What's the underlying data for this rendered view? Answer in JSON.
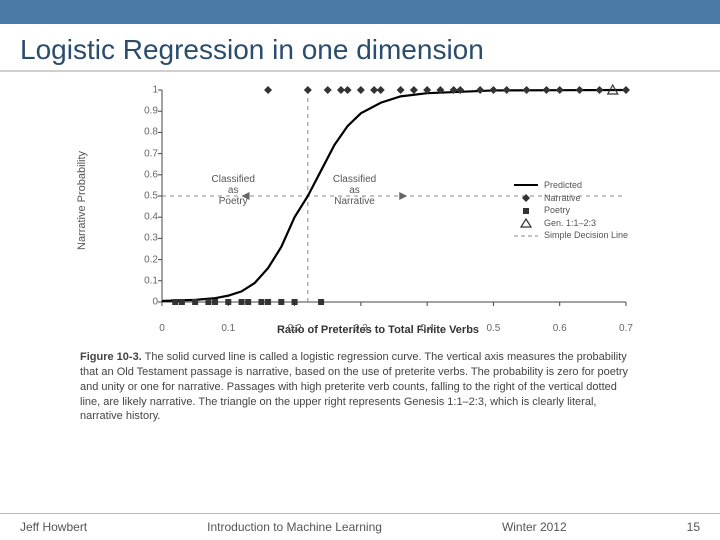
{
  "top_bar_color": "#4a7ba6",
  "title": "Logistic Regression in one dimension",
  "chart": {
    "type": "line",
    "ylabel": "Narrative Probability",
    "xlabel": "Ratio of Preterites to Total Finite Verbs",
    "xlim": [
      0,
      0.7
    ],
    "ylim": [
      0,
      1
    ],
    "xtick_step": 0.1,
    "ytick_step": 0.1,
    "xticks": [
      "0",
      "0.1",
      "0.2",
      "0.3",
      "0.4",
      "0.5",
      "0.6",
      "0.7"
    ],
    "yticks": [
      "0",
      "0.1",
      "0.2",
      "0.3",
      "0.4",
      "0.5",
      "0.6",
      "0.7",
      "0.8",
      "0.9",
      "1"
    ],
    "decision_x": 0.22,
    "decision_y": 0.5,
    "curve_color": "#000000",
    "curve_width": 2.2,
    "decision_line_color": "#888888",
    "axis_color": "#444444",
    "background_color": "#ffffff",
    "curve_points": [
      [
        0.0,
        0.005
      ],
      [
        0.05,
        0.01
      ],
      [
        0.08,
        0.018
      ],
      [
        0.1,
        0.03
      ],
      [
        0.12,
        0.05
      ],
      [
        0.14,
        0.09
      ],
      [
        0.16,
        0.16
      ],
      [
        0.18,
        0.26
      ],
      [
        0.2,
        0.4
      ],
      [
        0.22,
        0.5
      ],
      [
        0.24,
        0.62
      ],
      [
        0.26,
        0.74
      ],
      [
        0.28,
        0.83
      ],
      [
        0.3,
        0.89
      ],
      [
        0.33,
        0.94
      ],
      [
        0.36,
        0.97
      ],
      [
        0.4,
        0.985
      ],
      [
        0.5,
        0.998
      ],
      [
        0.6,
        0.999
      ],
      [
        0.7,
        1.0
      ]
    ],
    "narrative_points": [
      0.16,
      0.22,
      0.25,
      0.27,
      0.28,
      0.3,
      0.32,
      0.33,
      0.36,
      0.38,
      0.4,
      0.42,
      0.44,
      0.45,
      0.48,
      0.5,
      0.52,
      0.55,
      0.58,
      0.6,
      0.63,
      0.66,
      0.7
    ],
    "poetry_points": [
      0.02,
      0.03,
      0.05,
      0.07,
      0.08,
      0.1,
      0.12,
      0.13,
      0.15,
      0.16,
      0.18,
      0.2,
      0.24
    ],
    "triangle_x": 0.68,
    "class_left_label": "Classified\nas\nPoetry",
    "class_right_label": "Classified\nas\nNarrative",
    "arrow_color": "#666666",
    "legend": {
      "items": [
        {
          "label": "Predicted",
          "sym": "line"
        },
        {
          "label": "Narrative",
          "sym": "diamond"
        },
        {
          "label": "Poetry",
          "sym": "square"
        },
        {
          "label": "Gen. 1:1–2:3",
          "sym": "triangle"
        },
        {
          "label": "Simple Decision Line",
          "sym": "dash"
        }
      ]
    }
  },
  "caption_label": "Figure 10-3.",
  "caption_text": "The solid curved line is called a logistic regression curve. The vertical axis measures the probability that an Old Testament passage is narrative, based on the use of preterite verbs. The probability is zero for poetry and unity or one for narrative. Passages with high preterite verb counts, falling to the right of the vertical dotted line, are likely narrative. The triangle on the upper right represents Genesis 1:1–2:3, which is clearly literal, narrative history.",
  "footer": {
    "left": "Jeff Howbert",
    "center": "Introduction to Machine Learning",
    "right": "Winter 2012",
    "page": "15"
  }
}
